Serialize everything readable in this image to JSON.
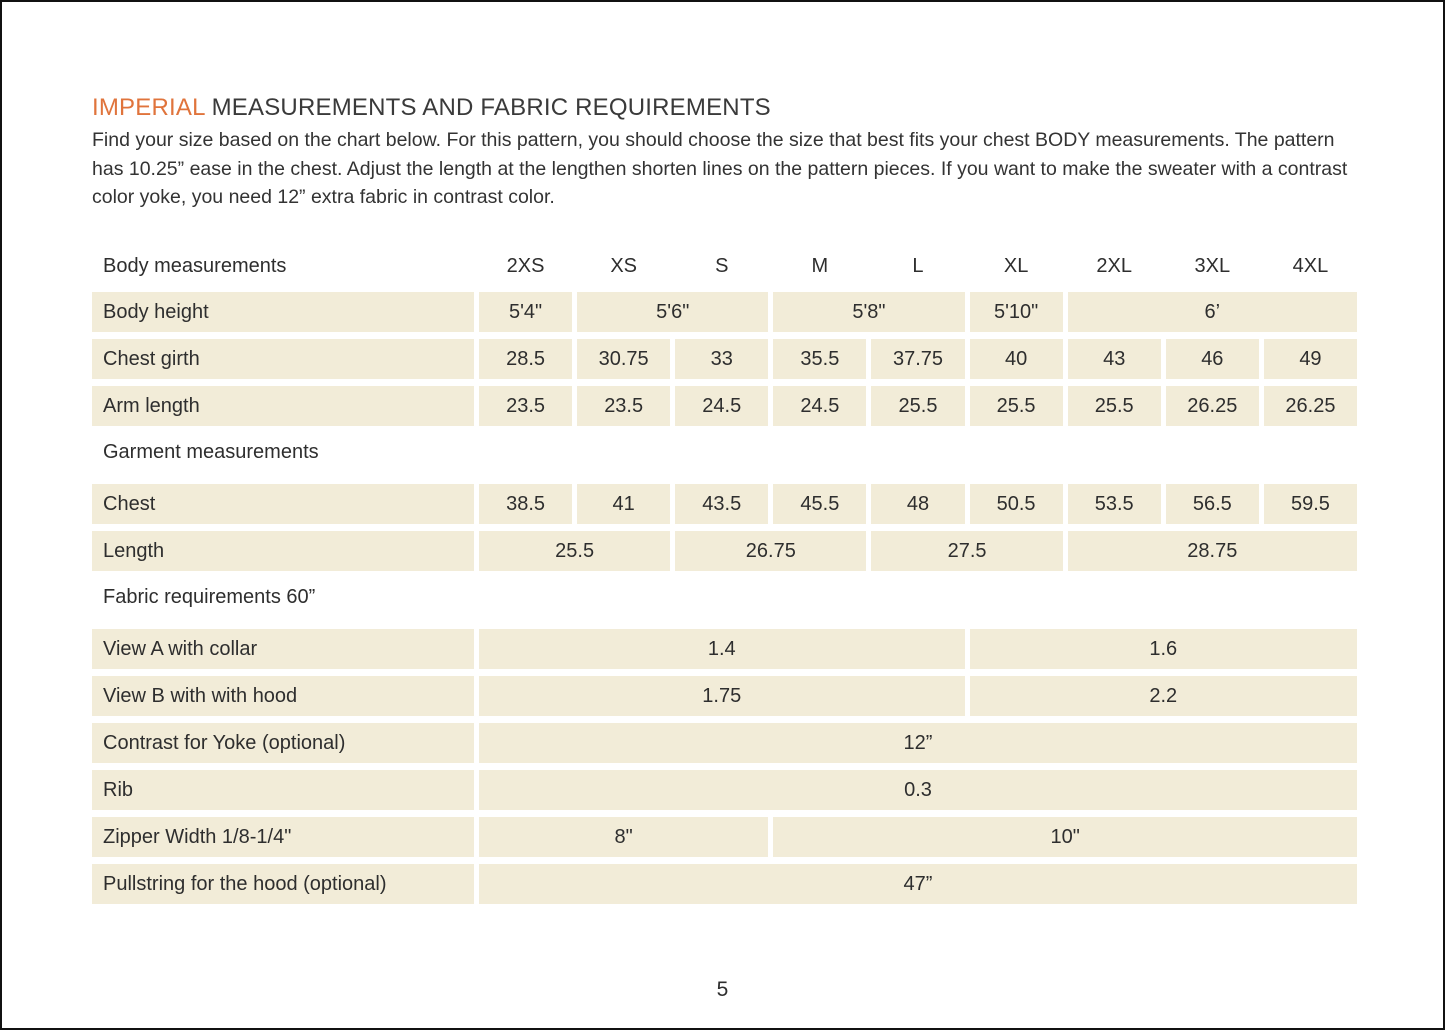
{
  "page": {
    "title_highlight": "IMPERIAL",
    "title_rest": " MEASUREMENTS AND FABRIC REQUIREMENTS",
    "intro": "Find your size based on the chart below. For this pattern, you should choose the size that best fits your chest BODY measurements. The pattern has 10.25” ease in the chest.  Adjust the length at the lengthen shorten lines on the pattern pieces. If you want to make the sweater with a contrast color yoke, you need 12” extra fabric in contrast color.",
    "page_number": "5"
  },
  "colors": {
    "accent_orange": "#e0743c",
    "cell_background": "#f2ecd8",
    "text": "#2e2e2e"
  },
  "table": {
    "size_columns": [
      "2XS",
      "XS",
      "S",
      "M",
      "L",
      "XL",
      "2XL",
      "3XL",
      "4XL"
    ],
    "rows": [
      {
        "kind": "header",
        "label": "Body measurements",
        "cells": [
          {
            "text": "2XS",
            "span": 1
          },
          {
            "text": "XS",
            "span": 1
          },
          {
            "text": "S",
            "span": 1
          },
          {
            "text": "M",
            "span": 1
          },
          {
            "text": "L",
            "span": 1
          },
          {
            "text": "XL",
            "span": 1
          },
          {
            "text": "2XL",
            "span": 1
          },
          {
            "text": "3XL",
            "span": 1
          },
          {
            "text": "4XL",
            "span": 1
          }
        ]
      },
      {
        "kind": "data",
        "label": "Body height",
        "cells": [
          {
            "text": "5'4\"",
            "span": 1
          },
          {
            "text": "5'6\"",
            "span": 2
          },
          {
            "text": "5'8\"",
            "span": 2
          },
          {
            "text": "5'10\"",
            "span": 1
          },
          {
            "text": "6’",
            "span": 3
          }
        ]
      },
      {
        "kind": "data",
        "label": "Chest girth",
        "cells": [
          {
            "text": "28.5",
            "span": 1
          },
          {
            "text": "30.75",
            "span": 1
          },
          {
            "text": "33",
            "span": 1
          },
          {
            "text": "35.5",
            "span": 1
          },
          {
            "text": "37.75",
            "span": 1
          },
          {
            "text": "40",
            "span": 1
          },
          {
            "text": "43",
            "span": 1
          },
          {
            "text": "46",
            "span": 1
          },
          {
            "text": "49",
            "span": 1
          }
        ]
      },
      {
        "kind": "data",
        "label": "Arm length",
        "cells": [
          {
            "text": "23.5",
            "span": 1
          },
          {
            "text": "23.5",
            "span": 1
          },
          {
            "text": "24.5",
            "span": 1
          },
          {
            "text": "24.5",
            "span": 1
          },
          {
            "text": "25.5",
            "span": 1
          },
          {
            "text": "25.5",
            "span": 1
          },
          {
            "text": "25.5",
            "span": 1
          },
          {
            "text": "26.25",
            "span": 1
          },
          {
            "text": "26.25",
            "span": 1
          }
        ]
      },
      {
        "kind": "section",
        "label": "Garment measurements",
        "cells": []
      },
      {
        "kind": "data",
        "label": "Chest",
        "cells": [
          {
            "text": "38.5",
            "span": 1
          },
          {
            "text": "41",
            "span": 1
          },
          {
            "text": "43.5",
            "span": 1
          },
          {
            "text": "45.5",
            "span": 1
          },
          {
            "text": "48",
            "span": 1
          },
          {
            "text": "50.5",
            "span": 1
          },
          {
            "text": "53.5",
            "span": 1
          },
          {
            "text": "56.5",
            "span": 1
          },
          {
            "text": "59.5",
            "span": 1
          }
        ]
      },
      {
        "kind": "data",
        "label": "Length",
        "cells": [
          {
            "text": "25.5",
            "span": 2
          },
          {
            "text": "26.75",
            "span": 2
          },
          {
            "text": "27.5",
            "span": 2
          },
          {
            "text": "28.75",
            "span": 3
          }
        ]
      },
      {
        "kind": "section",
        "label": "Fabric requirements 60”",
        "cells": []
      },
      {
        "kind": "data",
        "label": "View A with collar",
        "cells": [
          {
            "text": "1.4",
            "span": 5
          },
          {
            "text": "1.6",
            "span": 4
          }
        ]
      },
      {
        "kind": "data",
        "label": "View B with with hood",
        "cells": [
          {
            "text": "1.75",
            "span": 5
          },
          {
            "text": "2.2",
            "span": 4
          }
        ]
      },
      {
        "kind": "data",
        "label": "Contrast for Yoke (optional)",
        "cells": [
          {
            "text": "12”",
            "span": 9
          }
        ]
      },
      {
        "kind": "data",
        "label": "Rib",
        "cells": [
          {
            "text": "0.3",
            "span": 9
          }
        ]
      },
      {
        "kind": "data",
        "label": "Zipper Width 1/8-1/4\"",
        "cells": [
          {
            "text": "8\"",
            "span": 3
          },
          {
            "text": "10\"",
            "span": 6
          }
        ]
      },
      {
        "kind": "data",
        "label": "Pullstring for the hood (optional)",
        "cells": [
          {
            "text": "47”",
            "span": 9
          }
        ]
      }
    ]
  }
}
